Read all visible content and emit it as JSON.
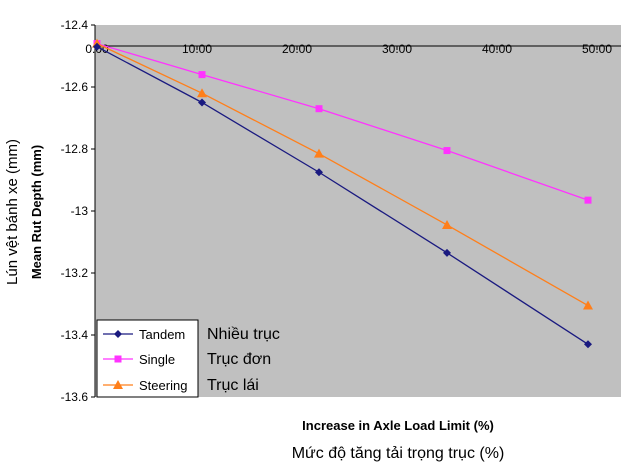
{
  "chart_data": {
    "type": "line",
    "title": "",
    "xlabel": "Increase in Axle Load Limit (%)",
    "xlabel_secondary": "Mức độ tăng tải trọng trục (%)",
    "ylabel": "Mean Rut Depth (mm)",
    "ylabel_secondary": "Lún vệt bánh xe (mm)",
    "xlim": [
      0,
      50
    ],
    "ylim": [
      -13.6,
      -12.4
    ],
    "x_ticks": [
      "0.00",
      "10.00",
      "20.00",
      "30.00",
      "40.00",
      "50.00"
    ],
    "y_ticks": [
      "-12.4",
      "-12.6",
      "-12.8",
      "-13",
      "-13.2",
      "-13.4",
      "-13.6"
    ],
    "x_axis_position": "top",
    "grid": false,
    "legend_position": "bottom-left",
    "series": [
      {
        "name": "Tandem",
        "annotation": "Nhiều trục",
        "color": "#1a1a80",
        "marker": "diamond",
        "x": [
          0,
          10.5,
          22.2,
          35.0,
          49.1
        ],
        "y": [
          -12.47,
          -12.65,
          -12.875,
          -13.135,
          -13.43
        ]
      },
      {
        "name": "Single",
        "annotation": "Trục đơn",
        "color": "#ff33ff",
        "marker": "square",
        "x": [
          0,
          10.5,
          22.2,
          35.0,
          49.1
        ],
        "y": [
          -12.46,
          -12.56,
          -12.67,
          -12.805,
          -12.965
        ]
      },
      {
        "name": "Steering",
        "annotation": "Trục lái",
        "color": "#ff7f1a",
        "marker": "triangle",
        "x": [
          0,
          10.5,
          22.2,
          35.0,
          49.1
        ],
        "y": [
          -12.46,
          -12.62,
          -12.815,
          -13.045,
          -13.305
        ]
      }
    ]
  },
  "colors": {
    "plot_background": "#c0c0c0",
    "axis": "#000000"
  }
}
